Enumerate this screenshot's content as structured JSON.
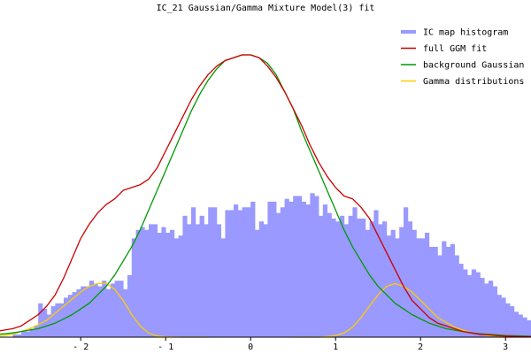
{
  "chart_data": {
    "type": "area",
    "title": "IC_21 Gaussian/Gamma Mixture Model(3) fit",
    "xlabel": "",
    "ylabel": "",
    "xlim": [
      -2.95,
      3.3
    ],
    "ylim": [
      0,
      1.0
    ],
    "x_ticks": [
      -2,
      -1,
      0,
      1,
      2,
      3
    ],
    "x_tick_labels": [
      "- 2",
      "- 1",
      "0",
      "1",
      "2",
      "3"
    ],
    "legend_position": "top-right",
    "grid": false,
    "colors": {
      "histogram": "#9999ff",
      "full_fit": "#cc0000",
      "background": "#009900",
      "gamma": "#ffcc00"
    },
    "series": [
      {
        "name": "IC map histogram",
        "kind": "histogram"
      },
      {
        "name": "full GGM fit",
        "kind": "line"
      },
      {
        "name": "background Gaussian",
        "kind": "line"
      },
      {
        "name": "Gamma distributions",
        "kind": "line"
      }
    ],
    "histogram": {
      "bin_start": -2.8,
      "bin_width": 0.05,
      "values": [
        0.01,
        0.01,
        0.02,
        0.02,
        0.03,
        0.04,
        0.12,
        0.1,
        0.08,
        0.11,
        0.12,
        0.12,
        0.14,
        0.15,
        0.16,
        0.17,
        0.18,
        0.18,
        0.2,
        0.19,
        0.18,
        0.2,
        0.17,
        0.19,
        0.2,
        0.2,
        0.17,
        0.22,
        0.35,
        0.38,
        0.39,
        0.38,
        0.4,
        0.4,
        0.37,
        0.39,
        0.37,
        0.38,
        0.35,
        0.36,
        0.43,
        0.4,
        0.46,
        0.4,
        0.43,
        0.4,
        0.46,
        0.46,
        0.4,
        0.35,
        0.45,
        0.45,
        0.47,
        0.45,
        0.46,
        0.46,
        0.48,
        0.38,
        0.41,
        0.4,
        0.48,
        0.48,
        0.44,
        0.46,
        0.49,
        0.48,
        0.5,
        0.5,
        0.48,
        0.47,
        0.51,
        0.5,
        0.43,
        0.47,
        0.44,
        0.42,
        0.41,
        0.43,
        0.4,
        0.43,
        0.46,
        0.42,
        0.42,
        0.38,
        0.41,
        0.45,
        0.4,
        0.41,
        0.36,
        0.38,
        0.35,
        0.39,
        0.46,
        0.41,
        0.38,
        0.35,
        0.35,
        0.37,
        0.32,
        0.32,
        0.29,
        0.34,
        0.32,
        0.33,
        0.29,
        0.26,
        0.24,
        0.22,
        0.24,
        0.23,
        0.21,
        0.19,
        0.2,
        0.18,
        0.15,
        0.14,
        0.12,
        0.11,
        0.09,
        0.08,
        0.07,
        0.06,
        0.05,
        0.04
      ]
    },
    "full_fit": {
      "x": [
        -3.0,
        -2.9,
        -2.8,
        -2.7,
        -2.6,
        -2.5,
        -2.4,
        -2.3,
        -2.2,
        -2.1,
        -2.0,
        -1.9,
        -1.8,
        -1.7,
        -1.6,
        -1.5,
        -1.4,
        -1.3,
        -1.2,
        -1.1,
        -1.0,
        -0.9,
        -0.8,
        -0.7,
        -0.6,
        -0.5,
        -0.4,
        -0.3,
        -0.2,
        -0.1,
        0.0,
        0.1,
        0.2,
        0.3,
        0.4,
        0.5,
        0.6,
        0.7,
        0.8,
        0.9,
        1.0,
        1.1,
        1.2,
        1.3,
        1.4,
        1.5,
        1.6,
        1.7,
        1.8,
        1.9,
        2.0,
        2.1,
        2.2,
        2.3,
        2.4,
        2.5,
        2.6,
        2.7,
        2.8,
        2.9,
        3.0,
        3.1,
        3.2,
        3.3
      ],
      "y": [
        0.02,
        0.025,
        0.03,
        0.04,
        0.06,
        0.08,
        0.11,
        0.15,
        0.21,
        0.28,
        0.35,
        0.4,
        0.44,
        0.47,
        0.49,
        0.52,
        0.53,
        0.54,
        0.56,
        0.6,
        0.66,
        0.72,
        0.78,
        0.84,
        0.89,
        0.93,
        0.96,
        0.98,
        0.99,
        1.0,
        1.0,
        0.99,
        0.96,
        0.92,
        0.87,
        0.81,
        0.75,
        0.68,
        0.62,
        0.57,
        0.53,
        0.5,
        0.49,
        0.46,
        0.42,
        0.36,
        0.3,
        0.24,
        0.18,
        0.13,
        0.1,
        0.07,
        0.05,
        0.04,
        0.03,
        0.02,
        0.015,
        0.01,
        0.008,
        0.005,
        0.004,
        0.003,
        0.002,
        0.002
      ]
    },
    "background_gaussian": {
      "x": [
        -3.0,
        -2.9,
        -2.8,
        -2.7,
        -2.6,
        -2.5,
        -2.4,
        -2.3,
        -2.2,
        -2.1,
        -2.0,
        -1.9,
        -1.8,
        -1.7,
        -1.6,
        -1.5,
        -1.4,
        -1.3,
        -1.2,
        -1.1,
        -1.0,
        -0.9,
        -0.8,
        -0.7,
        -0.6,
        -0.5,
        -0.4,
        -0.3,
        -0.2,
        -0.1,
        0.0,
        0.1,
        0.2,
        0.3,
        0.4,
        0.5,
        0.6,
        0.7,
        0.8,
        0.9,
        1.0,
        1.1,
        1.2,
        1.3,
        1.4,
        1.5,
        1.6,
        1.7,
        1.8,
        1.9,
        2.0,
        2.1,
        2.2,
        2.3,
        2.4,
        2.5,
        2.6,
        2.7,
        2.8,
        2.9,
        3.0,
        3.1,
        3.2,
        3.3
      ],
      "y": [
        0.01,
        0.012,
        0.015,
        0.02,
        0.025,
        0.03,
        0.04,
        0.05,
        0.065,
        0.08,
        0.1,
        0.12,
        0.15,
        0.18,
        0.22,
        0.27,
        0.32,
        0.38,
        0.45,
        0.52,
        0.59,
        0.66,
        0.73,
        0.8,
        0.86,
        0.91,
        0.95,
        0.98,
        0.99,
        1.0,
        1.0,
        0.99,
        0.97,
        0.93,
        0.87,
        0.81,
        0.73,
        0.66,
        0.59,
        0.52,
        0.45,
        0.38,
        0.32,
        0.27,
        0.22,
        0.18,
        0.15,
        0.12,
        0.1,
        0.08,
        0.065,
        0.05,
        0.04,
        0.03,
        0.025,
        0.02,
        0.015,
        0.012,
        0.01,
        0.008,
        0.006,
        0.005,
        0.004,
        0.003
      ]
    },
    "gamma_left": {
      "x": [
        -3.0,
        -2.8,
        -2.6,
        -2.4,
        -2.2,
        -2.0,
        -1.9,
        -1.8,
        -1.7,
        -1.6,
        -1.5,
        -1.4,
        -1.3,
        -1.2,
        -1.1,
        -1.0,
        -0.8,
        -0.5
      ],
      "y": [
        0.003,
        0.01,
        0.03,
        0.06,
        0.11,
        0.16,
        0.18,
        0.19,
        0.19,
        0.17,
        0.13,
        0.08,
        0.04,
        0.015,
        0.004,
        0.001,
        0.0,
        0.0
      ]
    },
    "gamma_right": {
      "x": [
        0.5,
        0.8,
        0.9,
        1.0,
        1.1,
        1.2,
        1.3,
        1.4,
        1.5,
        1.6,
        1.7,
        1.8,
        1.9,
        2.0,
        2.1,
        2.2,
        2.4,
        2.6,
        2.8,
        3.0
      ],
      "y": [
        0.0,
        0.0,
        0.002,
        0.006,
        0.015,
        0.035,
        0.07,
        0.11,
        0.15,
        0.18,
        0.19,
        0.18,
        0.16,
        0.13,
        0.1,
        0.07,
        0.035,
        0.015,
        0.006,
        0.002
      ]
    }
  }
}
